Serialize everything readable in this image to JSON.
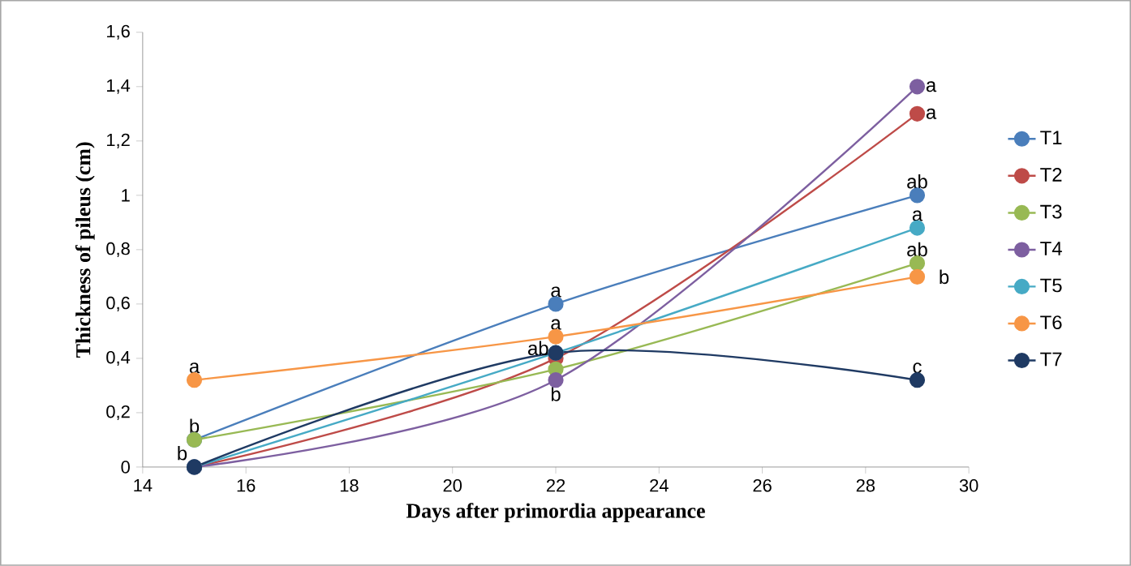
{
  "chart_data": {
    "type": "line",
    "xlabel": "Days after primordia appearance",
    "ylabel": "Thickness of  pileus (cm)",
    "x": [
      15,
      22,
      29
    ],
    "series": [
      {
        "name": "T1",
        "color": "#4a7ebb",
        "values": [
          0.1,
          0.6,
          1.0
        ]
      },
      {
        "name": "T2",
        "color": "#be4b48",
        "values": [
          0,
          0.4,
          1.3
        ]
      },
      {
        "name": "T3",
        "color": "#98b954",
        "values": [
          0.1,
          0.36,
          0.75
        ]
      },
      {
        "name": "T4",
        "color": "#7d5fa0",
        "values": [
          0,
          0.32,
          1.4
        ]
      },
      {
        "name": "T5",
        "color": "#46aac5",
        "values": [
          0,
          0.42,
          0.88
        ]
      },
      {
        "name": "T6",
        "color": "#f79646",
        "values": [
          0.32,
          0.48,
          0.7
        ]
      },
      {
        "name": "T7",
        "color": "#1f3a63",
        "values": [
          0,
          0.42,
          0.32
        ]
      }
    ],
    "xlim": [
      14,
      30
    ],
    "xticks": [
      14,
      16,
      18,
      20,
      22,
      24,
      26,
      28,
      30
    ],
    "ylim": [
      0,
      1.6
    ],
    "yticks": [
      0,
      {
        "value": 0.2,
        "label": "0,2"
      },
      {
        "value": 0.4,
        "label": "0,4"
      },
      {
        "value": 0.6,
        "label": "0,6"
      },
      {
        "value": 0.8,
        "label": "0,8"
      },
      1,
      {
        "value": 1.2,
        "label": "1,2"
      },
      {
        "value": 1.4,
        "label": "1,4"
      },
      {
        "value": 1.6,
        "label": "1,6"
      }
    ],
    "annotations": [
      {
        "text": "a",
        "x": 15,
        "y": 0.32
      },
      {
        "text": "b",
        "x": 15,
        "y": 0.1
      },
      {
        "text": "b",
        "x": 15,
        "y": 0
      },
      {
        "text": "a",
        "x": 22,
        "y": 0.6
      },
      {
        "text": "a",
        "x": 22,
        "y": 0.48
      },
      {
        "text": "ab",
        "x": 22,
        "y": 0.42
      },
      {
        "text": "b",
        "x": 22,
        "y": 0.32
      },
      {
        "text": "a",
        "x": 29,
        "y": 1.4
      },
      {
        "text": "a",
        "x": 29,
        "y": 1.3
      },
      {
        "text": "ab",
        "x": 29,
        "y": 1.0
      },
      {
        "text": "a",
        "x": 29,
        "y": 0.88
      },
      {
        "text": "ab",
        "x": 29,
        "y": 0.75
      },
      {
        "text": "b",
        "x": 29,
        "y": 0.7
      },
      {
        "text": "c",
        "x": 29,
        "y": 0.32
      }
    ],
    "grid": false,
    "legend": "right",
    "marker": "circle",
    "line_style": "solid"
  }
}
